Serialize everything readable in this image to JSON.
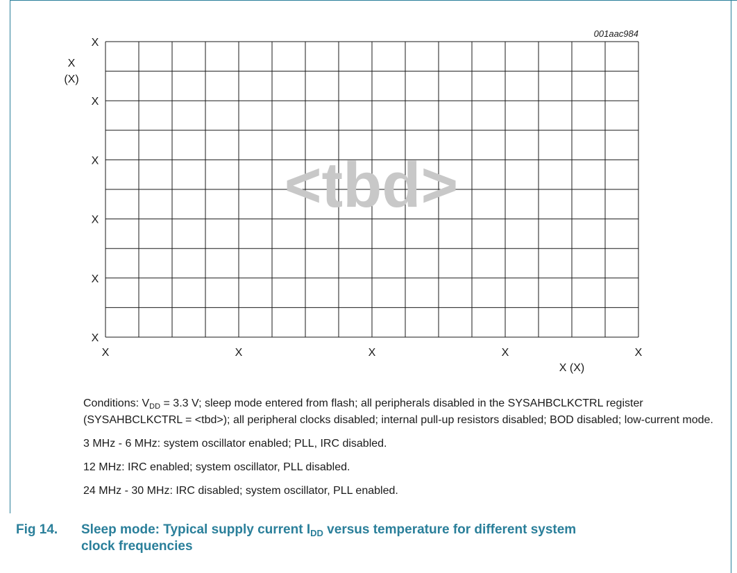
{
  "chart_data": {
    "type": "line",
    "code": "001aac984",
    "ylabel": "X",
    "yunit": "(X)",
    "xlabel": "X (X)",
    "y_ticks": [
      "X",
      "X",
      "X",
      "X",
      "X",
      "X"
    ],
    "x_ticks": [
      "X",
      "X",
      "X",
      "X",
      "X"
    ],
    "placeholder": "<tbd>",
    "grid": true,
    "series": []
  },
  "conditions": {
    "prefix": "Conditions: V",
    "sub": "DD",
    "text": " = 3.3 V; sleep mode entered from flash; all peripherals disabled in the SYSAHBCLKCTRL register (SYSAHBCLKCTRL = <tbd>); all peripheral clocks disabled; internal pull-up resistors disabled; BOD disabled; low-current mode."
  },
  "notes": [
    "3 MHz - 6 MHz: system oscillator enabled; PLL, IRC disabled.",
    "12 MHz: IRC enabled; system oscillator, PLL disabled.",
    "24 MHz - 30 MHz: IRC disabled; system oscillator, PLL enabled."
  ],
  "caption": {
    "number": "Fig 14.",
    "pre": "Sleep mode: Typical supply current I",
    "sub": "DD",
    "post": " versus temperature for different system",
    "line2": "clock frequencies"
  },
  "colors": {
    "accent": "#2a7f9a",
    "grid": "#1a1a1a",
    "placeholder": "#c8c8c8"
  }
}
